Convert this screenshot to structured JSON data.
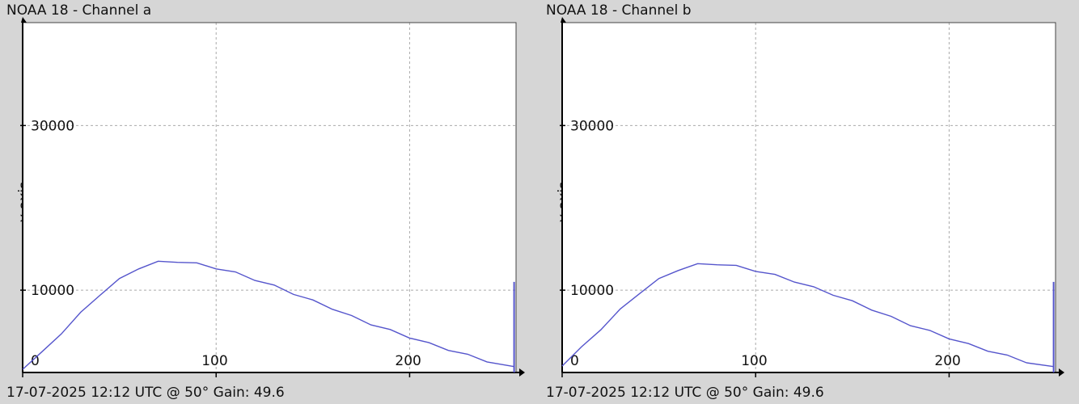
{
  "chart_data": [
    {
      "type": "line",
      "title": "NOAA 18 - Channel a",
      "footer": "17-07-2025 12:12 UTC @ 50° Gain: 49.6",
      "xlabel": "",
      "ylabel": "y-axis",
      "xlim": [
        0,
        255
      ],
      "ylim": [
        0,
        42500
      ],
      "x_ticks": [
        0,
        100,
        200
      ],
      "x_tick_labels": [
        "0",
        "100",
        "200"
      ],
      "y_ticks": [
        10000,
        30000
      ],
      "y_tick_labels": [
        "10000",
        "30000"
      ],
      "grid": true,
      "series": [
        {
          "color": "#5555cc",
          "x": [
            0,
            10,
            20,
            30,
            40,
            50,
            60,
            70,
            80,
            90,
            100,
            110,
            120,
            130,
            140,
            150,
            160,
            170,
            180,
            190,
            200,
            210,
            220,
            230,
            240,
            254
          ],
          "values": [
            500,
            2400,
            4800,
            7200,
            9500,
            11300,
            12700,
            13400,
            13500,
            13200,
            12700,
            12100,
            11300,
            10500,
            9600,
            8700,
            7800,
            6800,
            5900,
            5100,
            4300,
            3500,
            2800,
            2100,
            1400,
            600
          ]
        }
      ],
      "edge_spike": {
        "x": 254,
        "value": 11000
      }
    },
    {
      "type": "line",
      "title": "NOAA 18 - Channel b",
      "footer": "17-07-2025 12:12 UTC @ 50° Gain: 49.6",
      "xlabel": "",
      "ylabel": "y-axis",
      "xlim": [
        0,
        255
      ],
      "ylim": [
        0,
        42500
      ],
      "x_ticks": [
        0,
        100,
        200
      ],
      "x_tick_labels": [
        "0",
        "100",
        "200"
      ],
      "y_ticks": [
        10000,
        30000
      ],
      "y_tick_labels": [
        "10000",
        "30000"
      ],
      "grid": true,
      "series": [
        {
          "color": "#5555cc",
          "x": [
            0,
            10,
            20,
            30,
            40,
            50,
            60,
            70,
            80,
            90,
            100,
            110,
            120,
            130,
            140,
            150,
            160,
            170,
            180,
            190,
            200,
            210,
            220,
            230,
            240,
            254
          ],
          "values": [
            900,
            3000,
            5300,
            7600,
            9700,
            11300,
            12500,
            13100,
            13200,
            12900,
            12400,
            11800,
            11100,
            10300,
            9500,
            8600,
            7700,
            6700,
            5800,
            5000,
            4200,
            3400,
            2700,
            2000,
            1300,
            600
          ]
        }
      ],
      "edge_spike": {
        "x": 254,
        "value": 11000
      }
    }
  ]
}
